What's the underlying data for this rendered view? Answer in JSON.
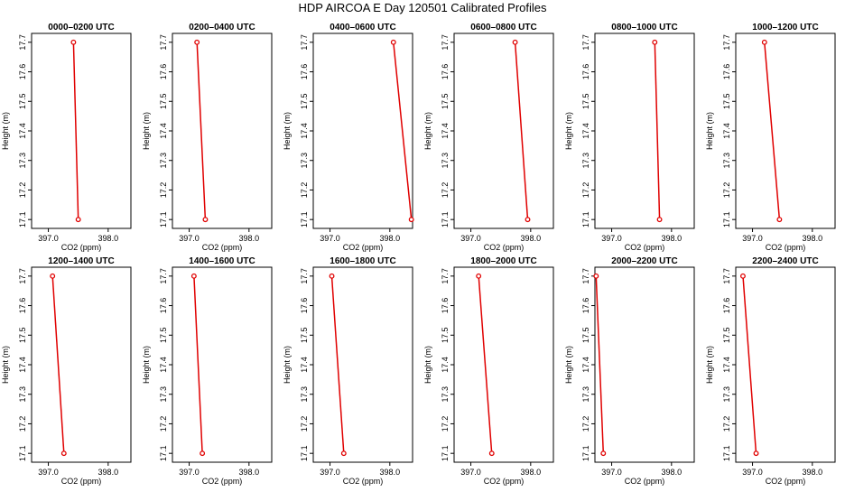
{
  "title": "HDP AIRCOA E  Day 120501  Calibrated Profiles",
  "chart_data": [
    {
      "type": "line",
      "title": "0000–0200 UTC",
      "xlabel": "CO2 (ppm)",
      "ylabel": "Height (m)",
      "xlim": [
        396.72,
        398.38
      ],
      "ylim": [
        17.07,
        17.73
      ],
      "xticks": [
        397.0,
        398.0
      ],
      "xtick_labels": [
        "397.0",
        "398.0"
      ],
      "yticks": [
        17.1,
        17.2,
        17.3,
        17.4,
        17.5,
        17.6,
        17.7
      ],
      "ytick_labels": [
        "17.1",
        "17.2",
        "17.3",
        "17.4",
        "17.5",
        "17.6",
        "17.7"
      ],
      "x": [
        397.42,
        397.5
      ],
      "y": [
        17.7,
        17.1
      ],
      "series_color": "#e00000",
      "grid": false
    },
    {
      "type": "line",
      "title": "0200–0400 UTC",
      "xlabel": "CO2 (ppm)",
      "ylabel": "Height (m)",
      "xlim": [
        396.72,
        398.38
      ],
      "ylim": [
        17.07,
        17.73
      ],
      "xticks": [
        397.0,
        398.0
      ],
      "xtick_labels": [
        "397.0",
        "398.0"
      ],
      "yticks": [
        17.1,
        17.2,
        17.3,
        17.4,
        17.5,
        17.6,
        17.7
      ],
      "ytick_labels": [
        "17.1",
        "17.2",
        "17.3",
        "17.4",
        "17.5",
        "17.6",
        "17.7"
      ],
      "x": [
        397.13,
        397.27
      ],
      "y": [
        17.7,
        17.1
      ],
      "series_color": "#e00000",
      "grid": false
    },
    {
      "type": "line",
      "title": "0400–0600 UTC",
      "xlabel": "CO2 (ppm)",
      "ylabel": "Height (m)",
      "xlim": [
        396.72,
        398.38
      ],
      "ylim": [
        17.07,
        17.73
      ],
      "xticks": [
        397.0,
        398.0
      ],
      "xtick_labels": [
        "397.0",
        "398.0"
      ],
      "yticks": [
        17.1,
        17.2,
        17.3,
        17.4,
        17.5,
        17.6,
        17.7
      ],
      "ytick_labels": [
        "17.1",
        "17.2",
        "17.3",
        "17.4",
        "17.5",
        "17.6",
        "17.7"
      ],
      "x": [
        398.06,
        398.36
      ],
      "y": [
        17.7,
        17.1
      ],
      "series_color": "#e00000",
      "grid": false
    },
    {
      "type": "line",
      "title": "0600–0800 UTC",
      "xlabel": "CO2 (ppm)",
      "ylabel": "Height (m)",
      "xlim": [
        396.72,
        398.38
      ],
      "ylim": [
        17.07,
        17.73
      ],
      "xticks": [
        397.0,
        398.0
      ],
      "xtick_labels": [
        "397.0",
        "398.0"
      ],
      "yticks": [
        17.1,
        17.2,
        17.3,
        17.4,
        17.5,
        17.6,
        17.7
      ],
      "ytick_labels": [
        "17.1",
        "17.2",
        "17.3",
        "17.4",
        "17.5",
        "17.6",
        "17.7"
      ],
      "x": [
        397.74,
        397.95
      ],
      "y": [
        17.7,
        17.1
      ],
      "series_color": "#e00000",
      "grid": false
    },
    {
      "type": "line",
      "title": "0800–1000 UTC",
      "xlabel": "CO2 (ppm)",
      "ylabel": "Height (m)",
      "xlim": [
        396.72,
        398.38
      ],
      "ylim": [
        17.07,
        17.73
      ],
      "xticks": [
        397.0,
        398.0
      ],
      "xtick_labels": [
        "397.0",
        "398.0"
      ],
      "yticks": [
        17.1,
        17.2,
        17.3,
        17.4,
        17.5,
        17.6,
        17.7
      ],
      "ytick_labels": [
        "17.1",
        "17.2",
        "17.3",
        "17.4",
        "17.5",
        "17.6",
        "17.7"
      ],
      "x": [
        397.72,
        397.8
      ],
      "y": [
        17.7,
        17.1
      ],
      "series_color": "#e00000",
      "grid": false
    },
    {
      "type": "line",
      "title": "1000–1200 UTC",
      "xlabel": "CO2 (ppm)",
      "ylabel": "Height (m)",
      "xlim": [
        396.72,
        398.38
      ],
      "ylim": [
        17.07,
        17.73
      ],
      "xticks": [
        397.0,
        398.0
      ],
      "xtick_labels": [
        "397.0",
        "398.0"
      ],
      "yticks": [
        17.1,
        17.2,
        17.3,
        17.4,
        17.5,
        17.6,
        17.7
      ],
      "ytick_labels": [
        "17.1",
        "17.2",
        "17.3",
        "17.4",
        "17.5",
        "17.6",
        "17.7"
      ],
      "x": [
        397.2,
        397.45
      ],
      "y": [
        17.7,
        17.1
      ],
      "series_color": "#e00000",
      "grid": false
    },
    {
      "type": "line",
      "title": "1200–1400 UTC",
      "xlabel": "CO2 (ppm)",
      "ylabel": "Height (m)",
      "xlim": [
        396.72,
        398.38
      ],
      "ylim": [
        17.07,
        17.73
      ],
      "xticks": [
        397.0,
        398.0
      ],
      "xtick_labels": [
        "397.0",
        "398.0"
      ],
      "yticks": [
        17.1,
        17.2,
        17.3,
        17.4,
        17.5,
        17.6,
        17.7
      ],
      "ytick_labels": [
        "17.1",
        "17.2",
        "17.3",
        "17.4",
        "17.5",
        "17.6",
        "17.7"
      ],
      "x": [
        397.07,
        397.26
      ],
      "y": [
        17.7,
        17.1
      ],
      "series_color": "#e00000",
      "grid": false
    },
    {
      "type": "line",
      "title": "1400–1600 UTC",
      "xlabel": "CO2 (ppm)",
      "ylabel": "Height (m)",
      "xlim": [
        396.72,
        398.38
      ],
      "ylim": [
        17.07,
        17.73
      ],
      "xticks": [
        397.0,
        398.0
      ],
      "xtick_labels": [
        "397.0",
        "398.0"
      ],
      "yticks": [
        17.1,
        17.2,
        17.3,
        17.4,
        17.5,
        17.6,
        17.7
      ],
      "ytick_labels": [
        "17.1",
        "17.2",
        "17.3",
        "17.4",
        "17.5",
        "17.6",
        "17.7"
      ],
      "x": [
        397.08,
        397.22
      ],
      "y": [
        17.7,
        17.1
      ],
      "series_color": "#e00000",
      "grid": false
    },
    {
      "type": "line",
      "title": "1600–1800 UTC",
      "xlabel": "CO2 (ppm)",
      "ylabel": "Height (m)",
      "xlim": [
        396.72,
        398.38
      ],
      "ylim": [
        17.07,
        17.73
      ],
      "xticks": [
        397.0,
        398.0
      ],
      "xtick_labels": [
        "397.0",
        "398.0"
      ],
      "yticks": [
        17.1,
        17.2,
        17.3,
        17.4,
        17.5,
        17.6,
        17.7
      ],
      "ytick_labels": [
        "17.1",
        "17.2",
        "17.3",
        "17.4",
        "17.5",
        "17.6",
        "17.7"
      ],
      "x": [
        397.03,
        397.23
      ],
      "y": [
        17.7,
        17.1
      ],
      "series_color": "#e00000",
      "grid": false
    },
    {
      "type": "line",
      "title": "1800–2000 UTC",
      "xlabel": "CO2 (ppm)",
      "ylabel": "Height (m)",
      "xlim": [
        396.72,
        398.38
      ],
      "ylim": [
        17.07,
        17.73
      ],
      "xticks": [
        397.0,
        398.0
      ],
      "xtick_labels": [
        "397.0",
        "398.0"
      ],
      "yticks": [
        17.1,
        17.2,
        17.3,
        17.4,
        17.5,
        17.6,
        17.7
      ],
      "ytick_labels": [
        "17.1",
        "17.2",
        "17.3",
        "17.4",
        "17.5",
        "17.6",
        "17.7"
      ],
      "x": [
        397.13,
        397.35
      ],
      "y": [
        17.7,
        17.1
      ],
      "series_color": "#e00000",
      "grid": false
    },
    {
      "type": "line",
      "title": "2000–2200 UTC",
      "xlabel": "CO2 (ppm)",
      "ylabel": "Height (m)",
      "xlim": [
        396.72,
        398.38
      ],
      "ylim": [
        17.07,
        17.73
      ],
      "xticks": [
        397.0,
        398.0
      ],
      "xtick_labels": [
        "397.0",
        "398.0"
      ],
      "yticks": [
        17.1,
        17.2,
        17.3,
        17.4,
        17.5,
        17.6,
        17.7
      ],
      "ytick_labels": [
        "17.1",
        "17.2",
        "17.3",
        "17.4",
        "17.5",
        "17.6",
        "17.7"
      ],
      "x": [
        396.74,
        396.86
      ],
      "y": [
        17.7,
        17.1
      ],
      "series_color": "#e00000",
      "grid": false
    },
    {
      "type": "line",
      "title": "2200–2400 UTC",
      "xlabel": "CO2 (ppm)",
      "ylabel": "Height (m)",
      "xlim": [
        396.72,
        398.38
      ],
      "ylim": [
        17.07,
        17.73
      ],
      "xticks": [
        397.0,
        398.0
      ],
      "xtick_labels": [
        "397.0",
        "398.0"
      ],
      "yticks": [
        17.1,
        17.2,
        17.3,
        17.4,
        17.5,
        17.6,
        17.7
      ],
      "ytick_labels": [
        "17.1",
        "17.2",
        "17.3",
        "17.4",
        "17.5",
        "17.6",
        "17.7"
      ],
      "x": [
        396.84,
        397.06
      ],
      "y": [
        17.7,
        17.1
      ],
      "series_color": "#e00000",
      "grid": false
    }
  ]
}
